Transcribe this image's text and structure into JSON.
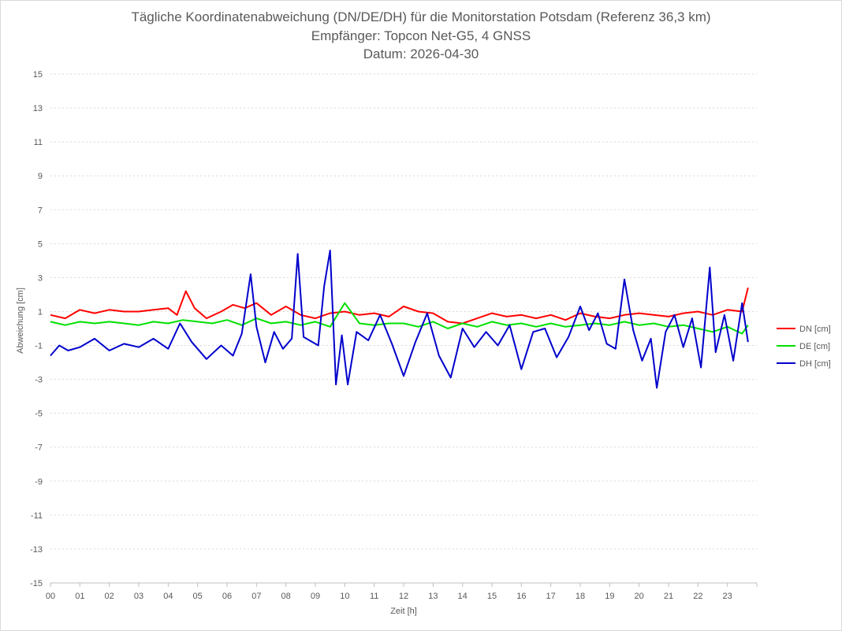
{
  "chart_data": {
    "type": "line",
    "title": "Tägliche Koordinatenabweichung (DN/DE/DH) für die Monitorstation Potsdam (Referenz 36,3 km)",
    "subtitle": "Empfänger: Topcon Net-G5, 4 GNSS",
    "date_line": "Datum: 2026-04-30",
    "xlabel": "Zeit [h]",
    "ylabel": "Abweichung [cm]",
    "xlim": [
      0,
      24
    ],
    "ylim": [
      -15,
      15
    ],
    "x_tick_labels": [
      "00",
      "01",
      "02",
      "03",
      "04",
      "05",
      "06",
      "07",
      "08",
      "09",
      "10",
      "11",
      "12",
      "13",
      "14",
      "15",
      "16",
      "17",
      "18",
      "19",
      "20",
      "21",
      "22",
      "23"
    ],
    "y_ticks": [
      15,
      13,
      11,
      9,
      7,
      5,
      3,
      1,
      -1,
      -3,
      -5,
      -7,
      -9,
      -11,
      -13,
      -15
    ],
    "grid": "horizontal dotted",
    "legend_position": "right",
    "series": [
      {
        "name": "DN [cm]",
        "color": "#ff0000",
        "points": [
          [
            0.0,
            0.8
          ],
          [
            0.5,
            0.6
          ],
          [
            1.0,
            1.1
          ],
          [
            1.5,
            0.9
          ],
          [
            2.0,
            1.1
          ],
          [
            2.5,
            1.0
          ],
          [
            3.0,
            1.0
          ],
          [
            3.5,
            1.1
          ],
          [
            4.0,
            1.2
          ],
          [
            4.3,
            0.8
          ],
          [
            4.6,
            2.2
          ],
          [
            4.9,
            1.2
          ],
          [
            5.3,
            0.6
          ],
          [
            5.8,
            1.0
          ],
          [
            6.2,
            1.4
          ],
          [
            6.6,
            1.2
          ],
          [
            7.0,
            1.5
          ],
          [
            7.5,
            0.8
          ],
          [
            8.0,
            1.3
          ],
          [
            8.5,
            0.8
          ],
          [
            9.0,
            0.6
          ],
          [
            9.5,
            0.9
          ],
          [
            10.0,
            1.0
          ],
          [
            10.5,
            0.8
          ],
          [
            11.0,
            0.9
          ],
          [
            11.5,
            0.7
          ],
          [
            12.0,
            1.3
          ],
          [
            12.5,
            1.0
          ],
          [
            13.0,
            0.9
          ],
          [
            13.5,
            0.4
          ],
          [
            14.0,
            0.3
          ],
          [
            14.5,
            0.6
          ],
          [
            15.0,
            0.9
          ],
          [
            15.5,
            0.7
          ],
          [
            16.0,
            0.8
          ],
          [
            16.5,
            0.6
          ],
          [
            17.0,
            0.8
          ],
          [
            17.5,
            0.5
          ],
          [
            18.0,
            0.9
          ],
          [
            18.5,
            0.7
          ],
          [
            19.0,
            0.6
          ],
          [
            19.5,
            0.8
          ],
          [
            20.0,
            0.9
          ],
          [
            20.5,
            0.8
          ],
          [
            21.0,
            0.7
          ],
          [
            21.5,
            0.9
          ],
          [
            22.0,
            1.0
          ],
          [
            22.5,
            0.8
          ],
          [
            23.0,
            1.1
          ],
          [
            23.5,
            1.0
          ],
          [
            23.7,
            2.4
          ]
        ]
      },
      {
        "name": "DE [cm]",
        "color": "#00e000",
        "points": [
          [
            0.0,
            0.4
          ],
          [
            0.5,
            0.2
          ],
          [
            1.0,
            0.4
          ],
          [
            1.5,
            0.3
          ],
          [
            2.0,
            0.4
          ],
          [
            2.5,
            0.3
          ],
          [
            3.0,
            0.2
          ],
          [
            3.5,
            0.4
          ],
          [
            4.0,
            0.3
          ],
          [
            4.5,
            0.5
          ],
          [
            5.0,
            0.4
          ],
          [
            5.5,
            0.3
          ],
          [
            6.0,
            0.5
          ],
          [
            6.5,
            0.2
          ],
          [
            7.0,
            0.6
          ],
          [
            7.5,
            0.3
          ],
          [
            8.0,
            0.4
          ],
          [
            8.5,
            0.2
          ],
          [
            9.0,
            0.4
          ],
          [
            9.5,
            0.1
          ],
          [
            10.0,
            1.5
          ],
          [
            10.5,
            0.3
          ],
          [
            11.0,
            0.2
          ],
          [
            11.5,
            0.3
          ],
          [
            12.0,
            0.3
          ],
          [
            12.5,
            0.1
          ],
          [
            13.0,
            0.4
          ],
          [
            13.5,
            0.0
          ],
          [
            14.0,
            0.3
          ],
          [
            14.5,
            0.1
          ],
          [
            15.0,
            0.4
          ],
          [
            15.5,
            0.2
          ],
          [
            16.0,
            0.3
          ],
          [
            16.5,
            0.1
          ],
          [
            17.0,
            0.3
          ],
          [
            17.5,
            0.1
          ],
          [
            18.0,
            0.2
          ],
          [
            18.5,
            0.3
          ],
          [
            19.0,
            0.2
          ],
          [
            19.5,
            0.4
          ],
          [
            20.0,
            0.2
          ],
          [
            20.5,
            0.3
          ],
          [
            21.0,
            0.1
          ],
          [
            21.5,
            0.2
          ],
          [
            22.0,
            0.0
          ],
          [
            22.5,
            -0.2
          ],
          [
            23.0,
            0.1
          ],
          [
            23.5,
            -0.3
          ],
          [
            23.7,
            0.2
          ]
        ]
      },
      {
        "name": "DH [cm]",
        "color": "#0000cc",
        "points": [
          [
            0.0,
            -1.6
          ],
          [
            0.3,
            -1.0
          ],
          [
            0.6,
            -1.3
          ],
          [
            1.0,
            -1.1
          ],
          [
            1.5,
            -0.6
          ],
          [
            2.0,
            -1.3
          ],
          [
            2.5,
            -0.9
          ],
          [
            3.0,
            -1.1
          ],
          [
            3.5,
            -0.6
          ],
          [
            4.0,
            -1.2
          ],
          [
            4.4,
            0.3
          ],
          [
            4.8,
            -0.8
          ],
          [
            5.3,
            -1.8
          ],
          [
            5.8,
            -1.0
          ],
          [
            6.2,
            -1.6
          ],
          [
            6.5,
            -0.3
          ],
          [
            6.8,
            3.2
          ],
          [
            7.0,
            0.1
          ],
          [
            7.3,
            -2.0
          ],
          [
            7.6,
            -0.2
          ],
          [
            7.9,
            -1.2
          ],
          [
            8.2,
            -0.6
          ],
          [
            8.4,
            4.4
          ],
          [
            8.6,
            -0.5
          ],
          [
            8.9,
            -0.8
          ],
          [
            9.1,
            -1.0
          ],
          [
            9.3,
            2.5
          ],
          [
            9.5,
            4.6
          ],
          [
            9.7,
            -3.3
          ],
          [
            9.9,
            -0.4
          ],
          [
            10.1,
            -3.3
          ],
          [
            10.4,
            -0.2
          ],
          [
            10.8,
            -0.7
          ],
          [
            11.2,
            0.8
          ],
          [
            11.6,
            -0.9
          ],
          [
            12.0,
            -2.8
          ],
          [
            12.4,
            -0.8
          ],
          [
            12.8,
            0.9
          ],
          [
            13.2,
            -1.6
          ],
          [
            13.6,
            -2.9
          ],
          [
            14.0,
            0.0
          ],
          [
            14.4,
            -1.1
          ],
          [
            14.8,
            -0.2
          ],
          [
            15.2,
            -1.0
          ],
          [
            15.6,
            0.2
          ],
          [
            16.0,
            -2.4
          ],
          [
            16.4,
            -0.2
          ],
          [
            16.8,
            0.0
          ],
          [
            17.2,
            -1.7
          ],
          [
            17.6,
            -0.5
          ],
          [
            18.0,
            1.3
          ],
          [
            18.3,
            -0.1
          ],
          [
            18.6,
            0.9
          ],
          [
            18.9,
            -0.9
          ],
          [
            19.2,
            -1.2
          ],
          [
            19.5,
            2.9
          ],
          [
            19.8,
            -0.1
          ],
          [
            20.1,
            -1.9
          ],
          [
            20.4,
            -0.6
          ],
          [
            20.6,
            -3.5
          ],
          [
            20.9,
            -0.2
          ],
          [
            21.2,
            0.8
          ],
          [
            21.5,
            -1.1
          ],
          [
            21.8,
            0.6
          ],
          [
            22.1,
            -2.3
          ],
          [
            22.3,
            1.6
          ],
          [
            22.4,
            3.6
          ],
          [
            22.6,
            -1.4
          ],
          [
            22.9,
            0.8
          ],
          [
            23.2,
            -1.9
          ],
          [
            23.5,
            1.5
          ],
          [
            23.7,
            -0.8
          ]
        ]
      }
    ]
  }
}
